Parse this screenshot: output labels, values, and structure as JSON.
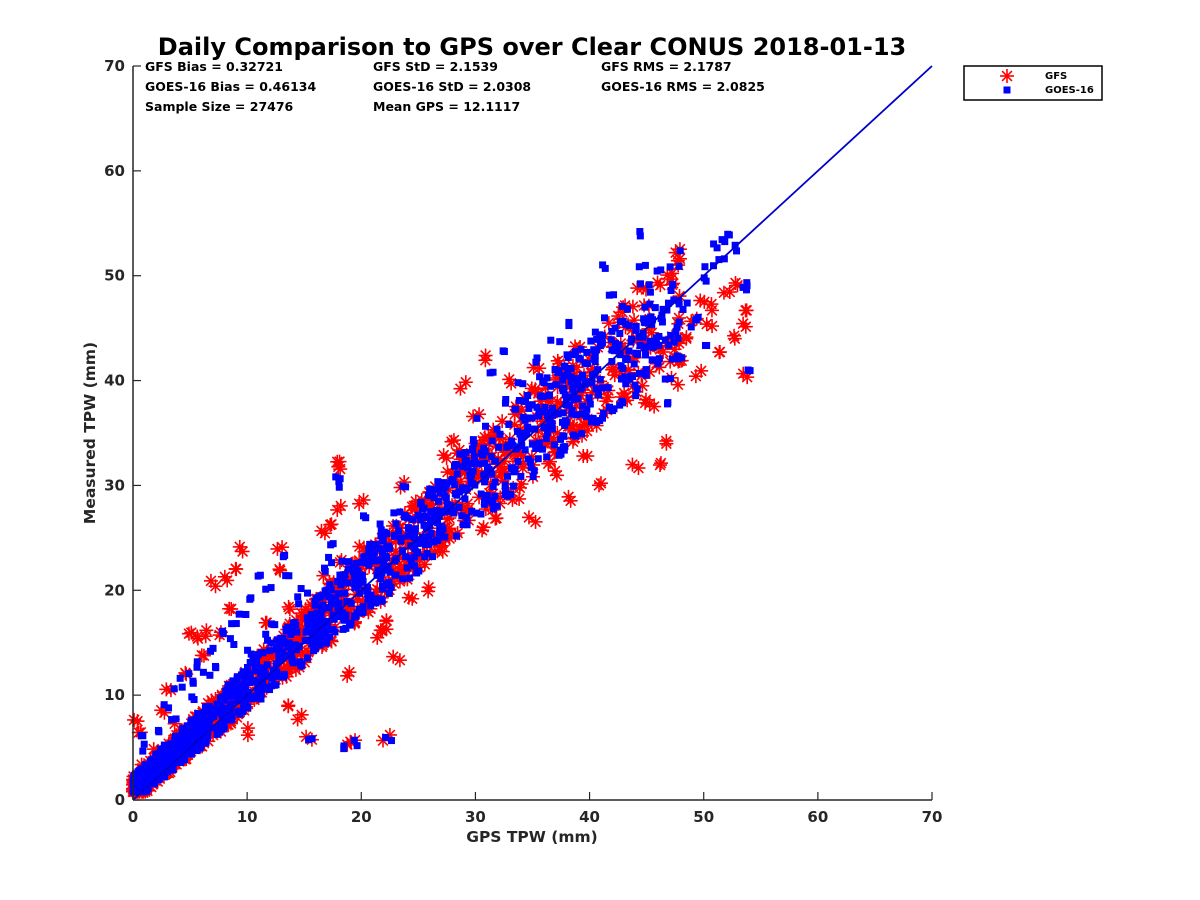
{
  "chart_data": {
    "type": "scatter",
    "title": "Daily Comparison to GPS over Clear CONUS 2018-01-13",
    "xlabel": "GPS TPW (mm)",
    "ylabel": "Measured TPW (mm)",
    "xlim": [
      0,
      70
    ],
    "ylim": [
      0,
      70
    ],
    "xticks": [
      0,
      10,
      20,
      30,
      40,
      50,
      60,
      70
    ],
    "yticks": [
      0,
      10,
      20,
      30,
      40,
      50,
      60,
      70
    ],
    "grid": false,
    "legend_position": "outside-top-right",
    "stats": [
      "GFS Bias = 0.32721",
      "GFS StD = 2.1539",
      "GFS RMS = 2.1787",
      "GOES-16 Bias = 0.46134",
      "GOES-16 StD = 2.0308",
      "GOES-16 RMS = 2.0825",
      "Sample Size = 27476",
      "Mean GPS = 12.1117"
    ],
    "one_to_one_line": {
      "x": [
        0,
        70
      ],
      "y": [
        0,
        70
      ],
      "color": "#0000cc"
    },
    "series": [
      {
        "name": "GFS",
        "marker": "asterisk",
        "color": "#ff0000",
        "points": [
          [
            0.3,
            7.8
          ],
          [
            0.5,
            6.5
          ],
          [
            1,
            3
          ],
          [
            1.5,
            2
          ],
          [
            2,
            4.5
          ],
          [
            2.5,
            8.5
          ],
          [
            3,
            10.5
          ],
          [
            3.5,
            4
          ],
          [
            4,
            7
          ],
          [
            4.5,
            12
          ],
          [
            5,
            16
          ],
          [
            5.5,
            15.5
          ],
          [
            6,
            14
          ],
          [
            6.5,
            16
          ],
          [
            7,
            20.5
          ],
          [
            7.5,
            15.8
          ],
          [
            8,
            21
          ],
          [
            8.5,
            18
          ],
          [
            9,
            22
          ],
          [
            9.5,
            23.8
          ],
          [
            10,
            6.5
          ],
          [
            10.5,
            12
          ],
          [
            11,
            10
          ],
          [
            11.5,
            13
          ],
          [
            12,
            17
          ],
          [
            12.5,
            22
          ],
          [
            13,
            24.2
          ],
          [
            13.5,
            9
          ],
          [
            14,
            18.5
          ],
          [
            14.5,
            8
          ],
          [
            15,
            14
          ],
          [
            15.5,
            6
          ],
          [
            16,
            19
          ],
          [
            16.5,
            25.5
          ],
          [
            17,
            21
          ],
          [
            17.5,
            26
          ],
          [
            17.8,
            31.5
          ],
          [
            18,
            32
          ],
          [
            18.2,
            28
          ],
          [
            18.5,
            23
          ],
          [
            18.8,
            5.5
          ],
          [
            19,
            12
          ],
          [
            19.5,
            5.8
          ],
          [
            19.8,
            28.5
          ],
          [
            20,
            24
          ],
          [
            20.5,
            18
          ],
          [
            21,
            22
          ],
          [
            21.5,
            15.8
          ],
          [
            22,
            16
          ],
          [
            22.3,
            6
          ],
          [
            22.5,
            17
          ],
          [
            23,
            13.5
          ],
          [
            23.5,
            30
          ],
          [
            24,
            21.5
          ],
          [
            24.5,
            19.5
          ],
          [
            25,
            27.5
          ],
          [
            26,
            20
          ],
          [
            26.5,
            28
          ],
          [
            27,
            25
          ],
          [
            27.5,
            32.5
          ],
          [
            28,
            34
          ],
          [
            28.5,
            33
          ],
          [
            29,
            39.5
          ],
          [
            29.5,
            30
          ],
          [
            30,
            36.5
          ],
          [
            30.5,
            26
          ],
          [
            31,
            42
          ],
          [
            31.5,
            35
          ],
          [
            32,
            27
          ],
          [
            32.5,
            31
          ],
          [
            33,
            40
          ],
          [
            33.5,
            28.5
          ],
          [
            34,
            37
          ],
          [
            34.5,
            32
          ],
          [
            35,
            26.8
          ],
          [
            35.5,
            41
          ],
          [
            36,
            34
          ],
          [
            36.5,
            38
          ],
          [
            37,
            31
          ],
          [
            37.5,
            42
          ],
          [
            38,
            28.8
          ],
          [
            38.5,
            35.5
          ],
          [
            39,
            39
          ],
          [
            39.5,
            33
          ],
          [
            40,
            41
          ],
          [
            40.5,
            36
          ],
          [
            41,
            30
          ],
          [
            41.5,
            39
          ],
          [
            42,
            43
          ],
          [
            42.5,
            40.5
          ],
          [
            43,
            45.5
          ],
          [
            43.5,
            41
          ],
          [
            44,
            32
          ],
          [
            44.5,
            49
          ],
          [
            45,
            38
          ],
          [
            45.5,
            37.5
          ],
          [
            46,
            32
          ],
          [
            46.5,
            43
          ],
          [
            47,
            34
          ],
          [
            47.5,
            40
          ],
          [
            48,
            42
          ],
          [
            48.5,
            44
          ],
          [
            49,
            46
          ],
          [
            49.5,
            40.8
          ],
          [
            50,
            47.5
          ],
          [
            50.5,
            45
          ],
          [
            51,
            47
          ],
          [
            51.5,
            43
          ],
          [
            52,
            48.5
          ],
          [
            52.5,
            44
          ],
          [
            53,
            49
          ],
          [
            53.5,
            45.5
          ],
          [
            53.8,
            40.5
          ],
          [
            54,
            46.8
          ],
          [
            3,
            5
          ],
          [
            5,
            6
          ],
          [
            7,
            8.5
          ],
          [
            9,
            10.5
          ],
          [
            11,
            13
          ],
          [
            13,
            15
          ],
          [
            15,
            17.5
          ],
          [
            17,
            19
          ],
          [
            19,
            21
          ],
          [
            21,
            23.2
          ],
          [
            24,
            24.5
          ],
          [
            27,
            24
          ],
          [
            30,
            30.5
          ],
          [
            33,
            33
          ],
          [
            36,
            36
          ],
          [
            39,
            38.5
          ],
          [
            42,
            41
          ],
          [
            45,
            43.5
          ],
          [
            48,
            45.8
          ]
        ]
      },
      {
        "name": "GOES-16",
        "marker": "square",
        "color": "#0000ff",
        "points": [
          [
            0.3,
            2
          ],
          [
            0.8,
            6
          ],
          [
            1,
            5
          ],
          [
            1.5,
            3.5
          ],
          [
            2,
            6.5
          ],
          [
            2.5,
            5
          ],
          [
            3,
            9
          ],
          [
            3.5,
            7.5
          ],
          [
            4,
            10.5
          ],
          [
            4.5,
            11.8
          ],
          [
            5,
            9.5
          ],
          [
            5.5,
            11
          ],
          [
            6,
            13
          ],
          [
            6.5,
            12
          ],
          [
            7,
            14.5
          ],
          [
            7.5,
            13
          ],
          [
            8,
            16
          ],
          [
            8.5,
            15
          ],
          [
            9,
            17
          ],
          [
            9.5,
            18
          ],
          [
            10,
            14
          ],
          [
            10.5,
            19
          ],
          [
            11,
            21.5
          ],
          [
            11.5,
            15.5
          ],
          [
            12,
            20.5
          ],
          [
            12.5,
            17
          ],
          [
            13,
            23.5
          ],
          [
            13.5,
            21
          ],
          [
            14,
            14.5
          ],
          [
            14.5,
            19
          ],
          [
            15,
            20
          ],
          [
            15.5,
            5.8
          ],
          [
            16,
            17.5
          ],
          [
            16.5,
            22
          ],
          [
            17,
            23
          ],
          [
            17.5,
            24.5
          ],
          [
            17.8,
            31
          ],
          [
            18,
            30
          ],
          [
            18.5,
            22.5
          ],
          [
            18.8,
            5.3
          ],
          [
            19,
            22
          ],
          [
            19.5,
            5.5
          ],
          [
            20,
            23
          ],
          [
            20.5,
            27
          ],
          [
            21,
            24.5
          ],
          [
            21.5,
            26
          ],
          [
            22,
            24
          ],
          [
            22.3,
            5.8
          ],
          [
            22.5,
            24
          ],
          [
            23,
            27.5
          ],
          [
            23.5,
            30.2
          ],
          [
            24,
            24
          ],
          [
            24.5,
            25.5
          ],
          [
            25,
            28
          ],
          [
            25.5,
            26.5
          ],
          [
            26,
            29.5
          ],
          [
            26.5,
            27
          ],
          [
            27,
            30
          ],
          [
            27.5,
            28.5
          ],
          [
            28,
            30.5
          ],
          [
            28.5,
            31.5
          ],
          [
            29,
            33
          ],
          [
            29.5,
            32
          ],
          [
            30,
            34
          ],
          [
            30.5,
            36
          ],
          [
            31,
            33
          ],
          [
            31.5,
            41
          ],
          [
            32,
            35
          ],
          [
            32.5,
            43
          ],
          [
            33,
            38
          ],
          [
            33.5,
            32
          ],
          [
            34,
            40
          ],
          [
            34.5,
            36.5
          ],
          [
            35,
            35
          ],
          [
            35.5,
            42
          ],
          [
            36,
            40
          ],
          [
            36.5,
            37
          ],
          [
            37,
            44
          ],
          [
            37.5,
            36
          ],
          [
            38,
            39
          ],
          [
            38.5,
            45.5
          ],
          [
            39,
            38.5
          ],
          [
            39.5,
            40
          ],
          [
            40,
            43
          ],
          [
            40.5,
            41
          ],
          [
            41,
            44
          ],
          [
            41.5,
            50.8
          ],
          [
            42,
            48
          ],
          [
            42.5,
            43
          ],
          [
            43,
            47
          ],
          [
            43.5,
            40
          ],
          [
            44,
            45
          ],
          [
            44.2,
            54
          ],
          [
            44.5,
            51
          ],
          [
            45,
            46
          ],
          [
            45.5,
            42
          ],
          [
            46,
            44
          ],
          [
            46.5,
            38
          ],
          [
            47,
            40
          ],
          [
            47.5,
            44.5
          ],
          [
            48,
            42
          ],
          [
            48.5,
            47
          ],
          [
            49,
            45.5
          ],
          [
            49.5,
            46
          ],
          [
            50,
            49.5
          ],
          [
            50.5,
            51
          ],
          [
            51,
            53
          ],
          [
            51.5,
            51.5
          ],
          [
            52,
            53.5
          ],
          [
            52.5,
            54
          ],
          [
            53,
            52.7
          ],
          [
            53.5,
            49
          ],
          [
            53.8,
            41.3
          ],
          [
            54,
            49
          ],
          [
            50,
            43.5
          ],
          [
            2,
            3
          ],
          [
            4,
            5
          ],
          [
            6,
            7
          ],
          [
            8,
            8.5
          ],
          [
            10,
            10
          ],
          [
            12,
            12
          ],
          [
            14,
            13.5
          ],
          [
            16,
            16
          ],
          [
            18,
            18
          ],
          [
            20,
            20.5
          ],
          [
            22,
            22
          ],
          [
            25,
            24.5
          ],
          [
            28,
            27.5
          ],
          [
            31,
            31
          ],
          [
            34,
            34
          ],
          [
            37,
            37
          ],
          [
            40,
            39.5
          ],
          [
            43,
            42
          ]
        ]
      }
    ]
  }
}
